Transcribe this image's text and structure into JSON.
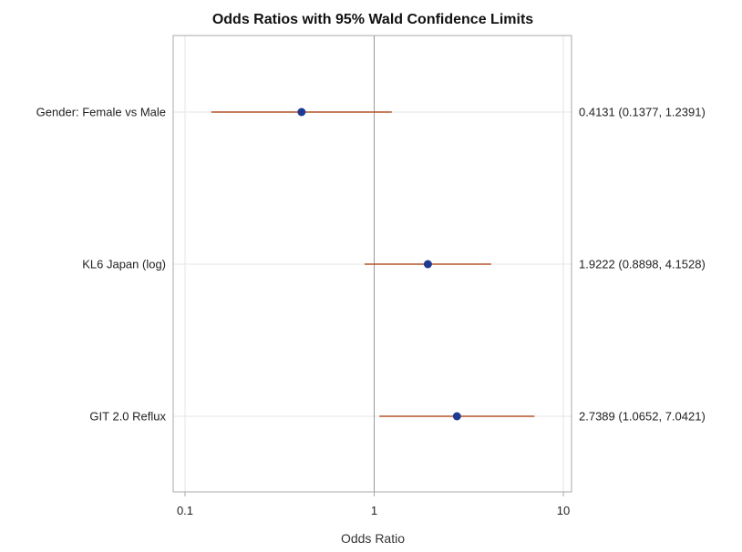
{
  "chart_data": {
    "type": "scatter",
    "title": "Odds Ratios with 95% Wald Confidence Limits",
    "xlabel": "Odds Ratio",
    "ylabel": "",
    "xscale": "log",
    "xlim": [
      0.1,
      10
    ],
    "xticks": [
      "0.1",
      "1",
      "10"
    ],
    "reference_line": 1,
    "grid": true,
    "colors": {
      "point": "#1f3a93",
      "ci": "#b5532a",
      "reference": "#999999",
      "grid": "#e6e6e6",
      "frame": "#aaaaaa"
    },
    "rows": [
      {
        "label": "Gender: Female vs Male",
        "or": 0.4131,
        "lower": 0.1377,
        "upper": 1.2391,
        "annotation": "0.4131 (0.1377, 1.2391)"
      },
      {
        "label": "KL6 Japan (log)",
        "or": 1.9222,
        "lower": 0.8898,
        "upper": 4.1528,
        "annotation": "1.9222 (0.8898, 4.1528)"
      },
      {
        "label": "GIT 2.0 Reflux",
        "or": 2.7389,
        "lower": 1.0652,
        "upper": 7.0421,
        "annotation": "2.7389 (1.0652, 7.0421)"
      }
    ]
  }
}
